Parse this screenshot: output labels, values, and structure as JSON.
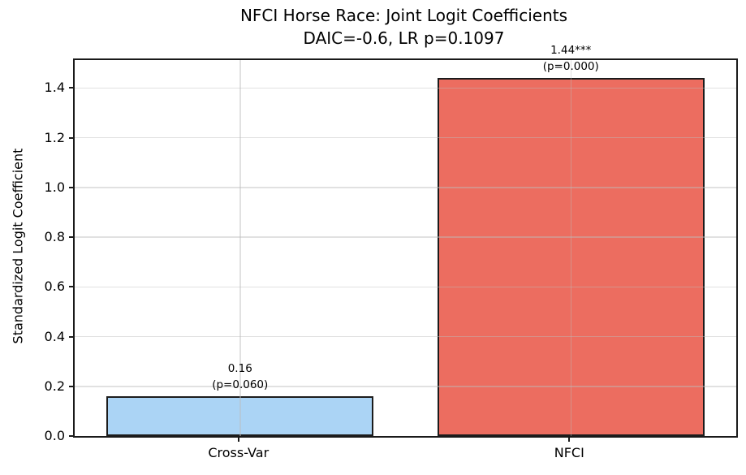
{
  "chart_data": {
    "type": "bar",
    "title": "NFCI Horse Race: Joint Logit Coefficients",
    "subtitle": "DAIC=-0.6, LR p=0.1097",
    "ylabel": "Standardized Logit Coefficient",
    "xlabel": "",
    "categories": [
      "Cross-Var",
      "NFCI"
    ],
    "values": [
      0.16,
      1.44
    ],
    "bar_value_labels": [
      "0.16",
      "1.44***"
    ],
    "bar_p_labels": [
      "(p=0.060)",
      "(p=0.000)"
    ],
    "bar_colors": [
      "#abd4f5",
      "#ec6d60"
    ],
    "bar_edge_color": "#1c1c1c",
    "ylim": [
      0,
      1.512
    ],
    "yticks": [
      0.0,
      0.2,
      0.4,
      0.6,
      0.8,
      1.0,
      1.2,
      1.4
    ],
    "ytick_label_format": "1dp",
    "grid": true,
    "grid_color": "#bdbdbd",
    "grid_alpha": 0.45,
    "legend": "none"
  }
}
